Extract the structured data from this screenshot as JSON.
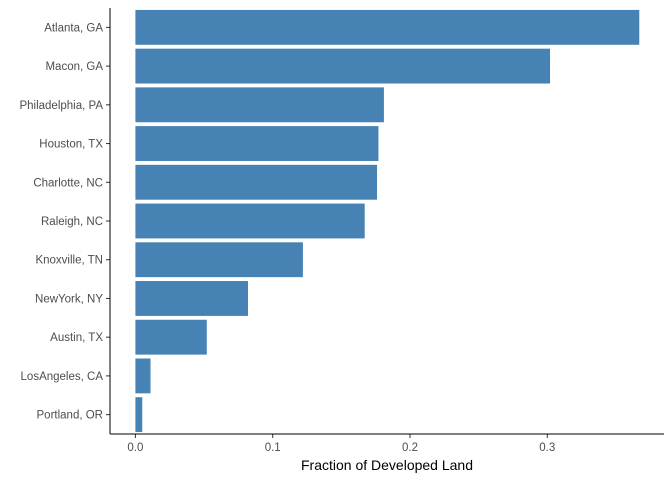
{
  "chart_data": {
    "type": "bar",
    "orientation": "horizontal",
    "categories": [
      "Atlanta, GA",
      "Macon, GA",
      "Philadelphia, PA",
      "Houston, TX",
      "Charlotte, NC",
      "Raleigh, NC",
      "Knoxville, TN",
      "NewYork, NY",
      "Austin, TX",
      "LosAngeles, CA",
      "Portland, OR"
    ],
    "values": [
      0.367,
      0.302,
      0.181,
      0.177,
      0.176,
      0.167,
      0.122,
      0.082,
      0.052,
      0.011,
      0.005
    ],
    "xlabel": "Fraction of Developed Land",
    "ylabel": "",
    "xlim": [
      -0.0185,
      0.385
    ],
    "xticks": [
      0.0,
      0.1,
      0.2,
      0.3
    ],
    "xtick_labels": [
      "0.0",
      "0.1",
      "0.2",
      "0.3"
    ],
    "bar_color": "#4682B4",
    "grid": false,
    "legend": "none"
  }
}
